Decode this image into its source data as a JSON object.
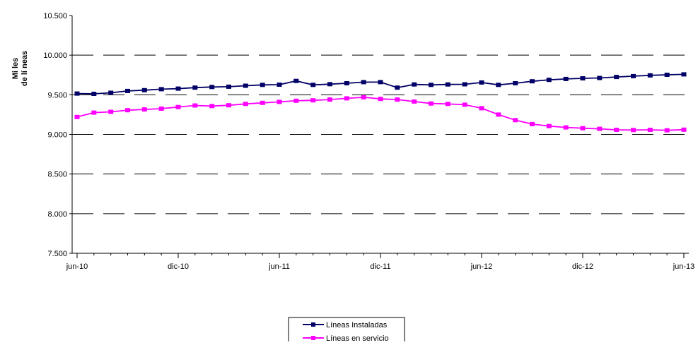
{
  "chart_data": {
    "type": "line",
    "ylabel_lines": [
      "Mi les",
      "de lí neas"
    ],
    "ylim": [
      7500,
      10500
    ],
    "yticks": [
      {
        "value": 7500,
        "label": "7.500"
      },
      {
        "value": 8000,
        "label": "8.000"
      },
      {
        "value": 8500,
        "label": "8.500"
      },
      {
        "value": 9000,
        "label": "9.000"
      },
      {
        "value": 9500,
        "label": "9.500"
      },
      {
        "value": 10000,
        "label": "10.000"
      },
      {
        "value": 10500,
        "label": "10.500"
      }
    ],
    "grid": "horizontal dashed",
    "legend_position": "bottom-center",
    "x": [
      "jun-10",
      "jul-10",
      "ago-10",
      "sep-10",
      "oct-10",
      "nov-10",
      "dic-10",
      "ene-11",
      "feb-11",
      "mar-11",
      "abr-11",
      "may-11",
      "jun-11",
      "jul-11",
      "ago-11",
      "sep-11",
      "oct-11",
      "nov-11",
      "dic-11",
      "ene-12",
      "feb-12",
      "mar-12",
      "abr-12",
      "may-12",
      "jun-12",
      "jul-12",
      "ago-12",
      "sep-12",
      "oct-12",
      "nov-12",
      "dic-12",
      "ene-13",
      "feb-13",
      "mar-13",
      "abr-13",
      "may-13",
      "jun-13"
    ],
    "xtick_labels": [
      {
        "index": 0,
        "label": "jun-10"
      },
      {
        "index": 6,
        "label": "dic-10"
      },
      {
        "index": 12,
        "label": "jun-11"
      },
      {
        "index": 18,
        "label": "dic-11"
      },
      {
        "index": 24,
        "label": "jun-12"
      },
      {
        "index": 30,
        "label": "dic-12"
      },
      {
        "index": 36,
        "label": "jun-13"
      }
    ],
    "series": [
      {
        "name": "Líneas Instaladas",
        "color": "#000066",
        "values": [
          9515,
          9512,
          9525,
          9548,
          9558,
          9571,
          9578,
          9590,
          9598,
          9602,
          9614,
          9625,
          9628,
          9675,
          9625,
          9634,
          9645,
          9660,
          9660,
          9590,
          9630,
          9625,
          9630,
          9632,
          9655,
          9625,
          9645,
          9670,
          9688,
          9700,
          9708,
          9712,
          9725,
          9735,
          9745,
          9752,
          9758
        ]
      },
      {
        "name": "Líneas en servicio",
        "color": "#ff00ff",
        "values": [
          9220,
          9275,
          9285,
          9305,
          9315,
          9325,
          9345,
          9365,
          9358,
          9368,
          9385,
          9398,
          9410,
          9425,
          9430,
          9440,
          9455,
          9468,
          9448,
          9440,
          9415,
          9390,
          9385,
          9375,
          9330,
          9250,
          9180,
          9130,
          9105,
          9088,
          9078,
          9070,
          9058,
          9055,
          9058,
          9052,
          9060
        ]
      }
    ]
  }
}
